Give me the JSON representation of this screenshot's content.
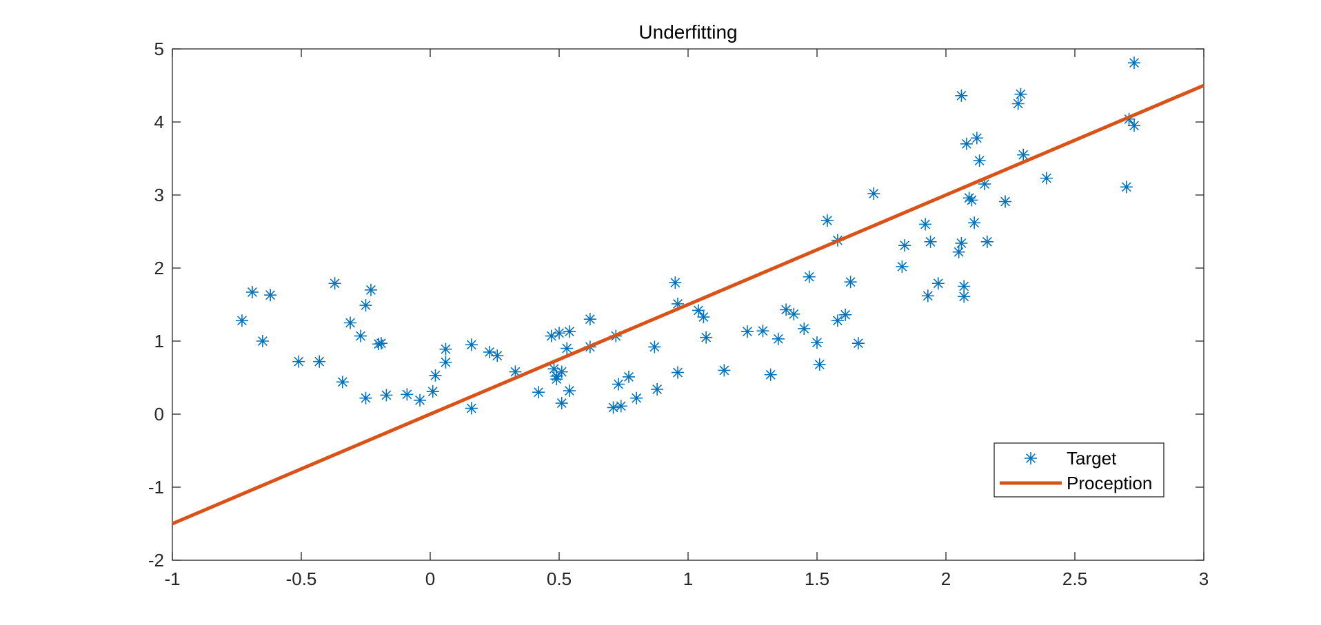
{
  "chart_data": {
    "type": "scatter",
    "title": "Underfitting",
    "xlabel": "",
    "ylabel": "",
    "xlim": [
      -1,
      3
    ],
    "ylim": [
      -2,
      5
    ],
    "x_ticks": [
      -1,
      -0.5,
      0,
      0.5,
      1,
      1.5,
      2,
      2.5,
      3
    ],
    "x_tick_labels": [
      "-1",
      "-0.5",
      "0",
      "0.5",
      "1",
      "1.5",
      "2",
      "2.5",
      "3"
    ],
    "y_ticks": [
      -2,
      -1,
      0,
      1,
      2,
      3,
      4,
      5
    ],
    "y_tick_labels": [
      "-2",
      "-1",
      "0",
      "1",
      "2",
      "3",
      "4",
      "5"
    ],
    "grid": false,
    "legend_position": "bottom-right",
    "series": [
      {
        "name": "Target",
        "kind": "scatter",
        "marker": "asterisk",
        "color": "#0072BD",
        "points": [
          [
            -0.73,
            1.28
          ],
          [
            -0.69,
            1.67
          ],
          [
            -0.65,
            1.0
          ],
          [
            -0.62,
            1.63
          ],
          [
            -0.51,
            0.72
          ],
          [
            -0.43,
            0.72
          ],
          [
            -0.37,
            1.79
          ],
          [
            -0.34,
            0.44
          ],
          [
            -0.31,
            1.25
          ],
          [
            -0.27,
            1.07
          ],
          [
            -0.25,
            0.22
          ],
          [
            -0.25,
            1.49
          ],
          [
            -0.23,
            1.7
          ],
          [
            -0.2,
            0.96
          ],
          [
            -0.19,
            0.97
          ],
          [
            -0.17,
            0.26
          ],
          [
            -0.09,
            0.27
          ],
          [
            -0.04,
            0.19
          ],
          [
            0.01,
            0.31
          ],
          [
            0.02,
            0.53
          ],
          [
            0.06,
            0.71
          ],
          [
            0.06,
            0.89
          ],
          [
            0.16,
            0.08
          ],
          [
            0.16,
            0.95
          ],
          [
            0.23,
            0.85
          ],
          [
            0.26,
            0.8
          ],
          [
            0.33,
            0.58
          ],
          [
            0.42,
            0.3
          ],
          [
            0.47,
            1.07
          ],
          [
            0.48,
            0.62
          ],
          [
            0.49,
            0.52
          ],
          [
            0.49,
            0.48
          ],
          [
            0.5,
            1.11
          ],
          [
            0.51,
            0.58
          ],
          [
            0.51,
            0.15
          ],
          [
            0.53,
            0.9
          ],
          [
            0.54,
            0.32
          ],
          [
            0.54,
            1.13
          ],
          [
            0.62,
            0.92
          ],
          [
            0.62,
            1.3
          ],
          [
            0.71,
            0.09
          ],
          [
            0.72,
            1.07
          ],
          [
            0.73,
            0.41
          ],
          [
            0.74,
            0.11
          ],
          [
            0.77,
            0.51
          ],
          [
            0.8,
            0.22
          ],
          [
            0.87,
            0.92
          ],
          [
            0.88,
            0.34
          ],
          [
            0.95,
            1.8
          ],
          [
            0.96,
            1.51
          ],
          [
            0.96,
            0.57
          ],
          [
            1.04,
            1.42
          ],
          [
            1.06,
            1.33
          ],
          [
            1.07,
            1.05
          ],
          [
            1.14,
            0.6
          ],
          [
            1.23,
            1.13
          ],
          [
            1.29,
            1.14
          ],
          [
            1.32,
            0.54
          ],
          [
            1.35,
            1.03
          ],
          [
            1.38,
            1.43
          ],
          [
            1.41,
            1.37
          ],
          [
            1.45,
            1.17
          ],
          [
            1.47,
            1.88
          ],
          [
            1.5,
            0.98
          ],
          [
            1.51,
            0.68
          ],
          [
            1.54,
            2.65
          ],
          [
            1.58,
            1.28
          ],
          [
            1.58,
            2.38
          ],
          [
            1.61,
            1.36
          ],
          [
            1.63,
            1.81
          ],
          [
            1.66,
            0.97
          ],
          [
            1.72,
            3.02
          ],
          [
            1.83,
            2.02
          ],
          [
            1.84,
            2.31
          ],
          [
            1.92,
            2.6
          ],
          [
            1.93,
            1.62
          ],
          [
            1.94,
            2.36
          ],
          [
            1.97,
            1.79
          ],
          [
            2.05,
            2.22
          ],
          [
            2.06,
            2.34
          ],
          [
            2.06,
            4.36
          ],
          [
            2.07,
            1.75
          ],
          [
            2.07,
            1.61
          ],
          [
            2.08,
            3.7
          ],
          [
            2.09,
            2.96
          ],
          [
            2.1,
            2.93
          ],
          [
            2.11,
            2.62
          ],
          [
            2.12,
            3.78
          ],
          [
            2.13,
            3.47
          ],
          [
            2.15,
            3.15
          ],
          [
            2.16,
            2.36
          ],
          [
            2.23,
            2.91
          ],
          [
            2.28,
            4.25
          ],
          [
            2.29,
            4.38
          ],
          [
            2.3,
            3.55
          ],
          [
            2.39,
            3.23
          ],
          [
            2.7,
            3.11
          ],
          [
            2.71,
            4.04
          ],
          [
            2.73,
            4.81
          ],
          [
            2.73,
            3.95
          ]
        ]
      },
      {
        "name": "Proception",
        "kind": "line",
        "color": "#D95319",
        "points": [
          [
            -1,
            -1.5
          ],
          [
            3,
            4.5
          ]
        ]
      }
    ]
  }
}
